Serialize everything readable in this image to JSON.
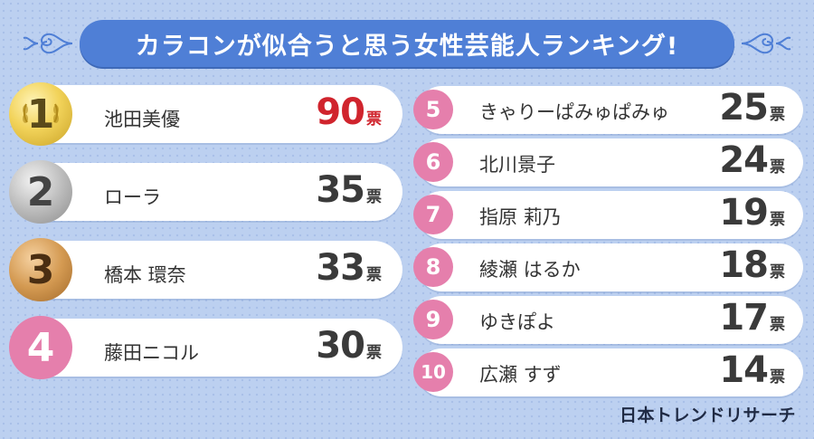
{
  "title": "カラコンが似合うと思う女性芸能人ランキング!",
  "brand": "日本トレンドリサーチ",
  "colors": {
    "banner": "#4f7fd6",
    "pink_badge": "#e57fac",
    "top_votes": "#d0242d"
  },
  "chart_data": {
    "type": "table",
    "title": "カラコンが似合うと思う女性芸能人ランキング!",
    "unit": "票",
    "rows": [
      {
        "rank": "1",
        "name": "池田美優",
        "votes": 90
      },
      {
        "rank": "2",
        "name": "ローラ",
        "votes": 35
      },
      {
        "rank": "3",
        "name": "橋本 環奈",
        "votes": 33
      },
      {
        "rank": "4",
        "name": "藤田ニコル",
        "votes": 30
      },
      {
        "rank": "5",
        "name": "きゃりーぱみゅぱみゅ",
        "votes": 25
      },
      {
        "rank": "6",
        "name": "北川景子",
        "votes": 24
      },
      {
        "rank": "7",
        "name": "指原 莉乃",
        "votes": 19
      },
      {
        "rank": "8",
        "name": "綾瀬 はるか",
        "votes": 18
      },
      {
        "rank": "9",
        "name": "ゆきぽよ",
        "votes": 17
      },
      {
        "rank": "10",
        "name": "広瀬 すず",
        "votes": 14
      }
    ]
  }
}
